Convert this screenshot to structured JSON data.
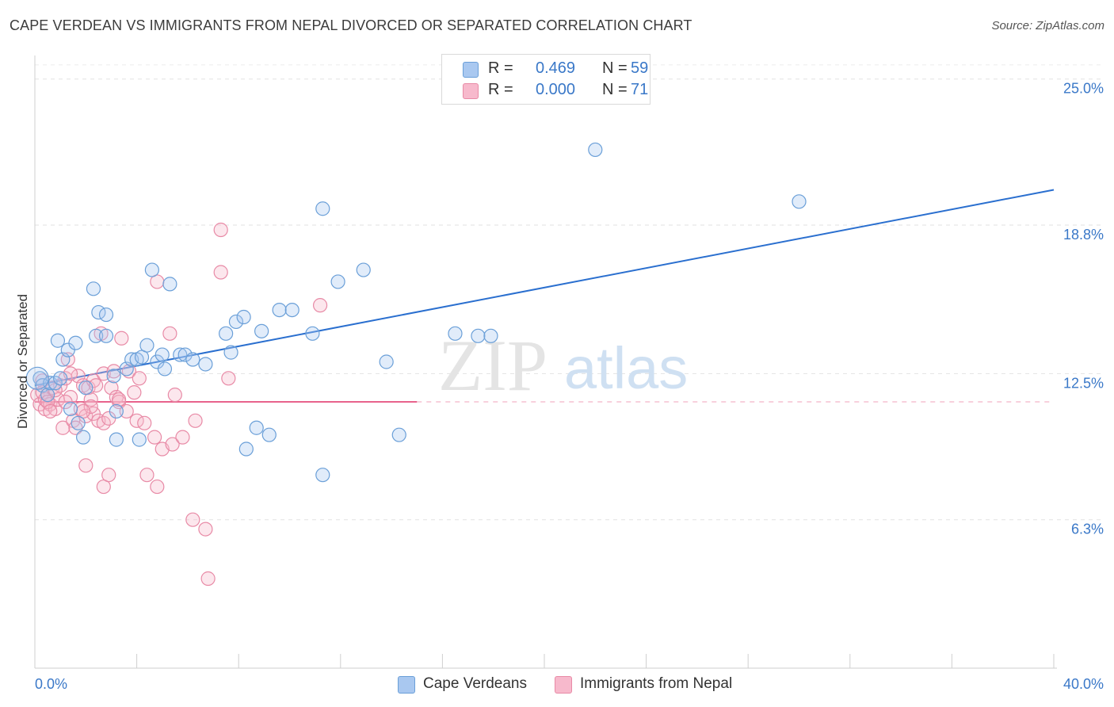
{
  "title": "CAPE VERDEAN VS IMMIGRANTS FROM NEPAL DIVORCED OR SEPARATED CORRELATION CHART",
  "source": "Source: ZipAtlas.com",
  "watermark": {
    "zip": "ZIP",
    "atlas": "atlas"
  },
  "legend": {
    "rows": [
      {
        "r_label": "R =",
        "r_value": "0.469",
        "n_label": "N =",
        "n_value": "59",
        "color": "#a9c8f0",
        "border": "#6a9fd8"
      },
      {
        "r_label": "R =",
        "r_value": "0.000",
        "n_label": "N =",
        "n_value": "71",
        "color": "#f7b9cc",
        "border": "#e88aa6"
      }
    ]
  },
  "bottom_legend": [
    {
      "label": "Cape Verdeans",
      "color": "#a9c8f0",
      "border": "#6a9fd8"
    },
    {
      "label": "Immigrants from Nepal",
      "color": "#f7b9cc",
      "border": "#e88aa6"
    }
  ],
  "chart_data": {
    "type": "scatter",
    "xlabel": "",
    "ylabel": "Divorced or Separated",
    "xlim": [
      0,
      40
    ],
    "ylim": [
      0,
      26
    ],
    "x_tick_labels": [
      {
        "value": 0,
        "label": "0.0%"
      },
      {
        "value": 40,
        "label": "40.0%"
      }
    ],
    "y_tick_labels": [
      {
        "value": 25.0,
        "label": "25.0%"
      },
      {
        "value": 18.8,
        "label": "18.8%"
      },
      {
        "value": 12.5,
        "label": "12.5%"
      },
      {
        "value": 6.3,
        "label": "6.3%"
      }
    ],
    "grid": true,
    "series": [
      {
        "name": "Cape Verdeans",
        "color": "#6a9fd8",
        "fill": "rgba(169,200,240,0.35)",
        "trend": {
          "x": [
            0,
            40
          ],
          "y": [
            12.0,
            20.3
          ],
          "color": "#2a6fcf"
        },
        "points": [
          [
            0.2,
            12.3
          ],
          [
            0.3,
            12.0
          ],
          [
            0.5,
            11.6
          ],
          [
            0.6,
            12.1
          ],
          [
            0.8,
            12.1
          ],
          [
            0.9,
            13.9
          ],
          [
            1.0,
            12.3
          ],
          [
            1.1,
            13.1
          ],
          [
            1.3,
            13.5
          ],
          [
            1.4,
            11.0
          ],
          [
            1.6,
            13.8
          ],
          [
            1.7,
            10.4
          ],
          [
            1.9,
            9.8
          ],
          [
            2.0,
            11.9
          ],
          [
            2.3,
            16.1
          ],
          [
            2.4,
            14.1
          ],
          [
            2.5,
            15.1
          ],
          [
            2.8,
            14.1
          ],
          [
            2.8,
            15.0
          ],
          [
            3.1,
            12.4
          ],
          [
            3.2,
            10.9
          ],
          [
            3.2,
            9.7
          ],
          [
            3.6,
            12.7
          ],
          [
            3.8,
            13.1
          ],
          [
            4.0,
            13.1
          ],
          [
            4.1,
            9.7
          ],
          [
            4.2,
            13.2
          ],
          [
            4.4,
            13.7
          ],
          [
            4.6,
            16.9
          ],
          [
            4.8,
            13.0
          ],
          [
            5.0,
            13.3
          ],
          [
            5.1,
            12.7
          ],
          [
            5.3,
            16.3
          ],
          [
            5.7,
            13.3
          ],
          [
            5.9,
            13.3
          ],
          [
            6.2,
            13.1
          ],
          [
            6.7,
            12.9
          ],
          [
            7.5,
            14.2
          ],
          [
            7.7,
            13.4
          ],
          [
            7.9,
            14.7
          ],
          [
            8.2,
            14.9
          ],
          [
            8.3,
            9.3
          ],
          [
            8.7,
            10.2
          ],
          [
            8.9,
            14.3
          ],
          [
            9.2,
            9.9
          ],
          [
            9.6,
            15.2
          ],
          [
            10.1,
            15.2
          ],
          [
            10.9,
            14.2
          ],
          [
            11.3,
            8.2
          ],
          [
            11.3,
            19.5
          ],
          [
            11.9,
            16.4
          ],
          [
            12.9,
            16.9
          ],
          [
            13.8,
            13.0
          ],
          [
            14.3,
            9.9
          ],
          [
            16.5,
            14.2
          ],
          [
            17.4,
            14.1
          ],
          [
            17.9,
            14.1
          ],
          [
            22.0,
            22.0
          ],
          [
            30.0,
            19.8
          ]
        ]
      },
      {
        "name": "Immigrants from Nepal",
        "color": "#e88aa6",
        "fill": "rgba(247,185,204,0.35)",
        "trend": {
          "x": [
            0,
            15
          ],
          "y": [
            11.3,
            11.3
          ],
          "color": "#e8638c",
          "dashed_extension_to": 40
        },
        "points": [
          [
            0.1,
            11.6
          ],
          [
            0.2,
            11.2
          ],
          [
            0.3,
            11.7
          ],
          [
            0.4,
            11.4
          ],
          [
            0.4,
            11.0
          ],
          [
            0.5,
            11.6
          ],
          [
            0.6,
            11.2
          ],
          [
            0.7,
            11.9
          ],
          [
            0.8,
            11.0
          ],
          [
            0.9,
            11.4
          ],
          [
            1.0,
            12.0
          ],
          [
            1.1,
            10.2
          ],
          [
            1.2,
            12.3
          ],
          [
            1.3,
            13.1
          ],
          [
            1.4,
            11.5
          ],
          [
            1.5,
            10.5
          ],
          [
            1.6,
            10.2
          ],
          [
            1.7,
            12.4
          ],
          [
            1.8,
            11.0
          ],
          [
            1.9,
            12.0
          ],
          [
            2.0,
            8.6
          ],
          [
            2.0,
            10.7
          ],
          [
            2.1,
            11.9
          ],
          [
            2.2,
            11.4
          ],
          [
            2.3,
            12.2
          ],
          [
            2.3,
            10.8
          ],
          [
            2.4,
            12.0
          ],
          [
            2.5,
            10.5
          ],
          [
            2.6,
            14.2
          ],
          [
            2.7,
            12.5
          ],
          [
            2.7,
            10.4
          ],
          [
            2.7,
            7.7
          ],
          [
            2.9,
            8.2
          ],
          [
            3.0,
            11.9
          ],
          [
            3.1,
            12.6
          ],
          [
            3.2,
            11.5
          ],
          [
            3.3,
            11.3
          ],
          [
            3.4,
            14.0
          ],
          [
            3.7,
            12.6
          ],
          [
            3.9,
            11.7
          ],
          [
            4.0,
            10.5
          ],
          [
            4.3,
            10.4
          ],
          [
            4.4,
            8.2
          ],
          [
            4.7,
            9.8
          ],
          [
            4.8,
            7.7
          ],
          [
            5.0,
            9.3
          ],
          [
            5.3,
            14.2
          ],
          [
            5.4,
            9.5
          ],
          [
            5.5,
            11.6
          ],
          [
            5.8,
            9.8
          ],
          [
            6.2,
            6.3
          ],
          [
            6.3,
            10.5
          ],
          [
            6.7,
            5.9
          ],
          [
            6.8,
            3.8
          ],
          [
            7.3,
            18.6
          ],
          [
            7.3,
            16.8
          ],
          [
            7.6,
            12.3
          ],
          [
            4.8,
            16.4
          ],
          [
            11.2,
            15.4
          ],
          [
            0.3,
            12.2
          ],
          [
            0.5,
            11.3
          ],
          [
            1.2,
            11.3
          ],
          [
            2.2,
            11.1
          ],
          [
            3.3,
            11.4
          ],
          [
            1.4,
            12.5
          ],
          [
            0.8,
            11.8
          ],
          [
            2.9,
            10.6
          ],
          [
            4.1,
            12.3
          ],
          [
            0.6,
            10.9
          ],
          [
            1.9,
            10.9
          ],
          [
            3.6,
            10.9
          ]
        ]
      }
    ]
  }
}
